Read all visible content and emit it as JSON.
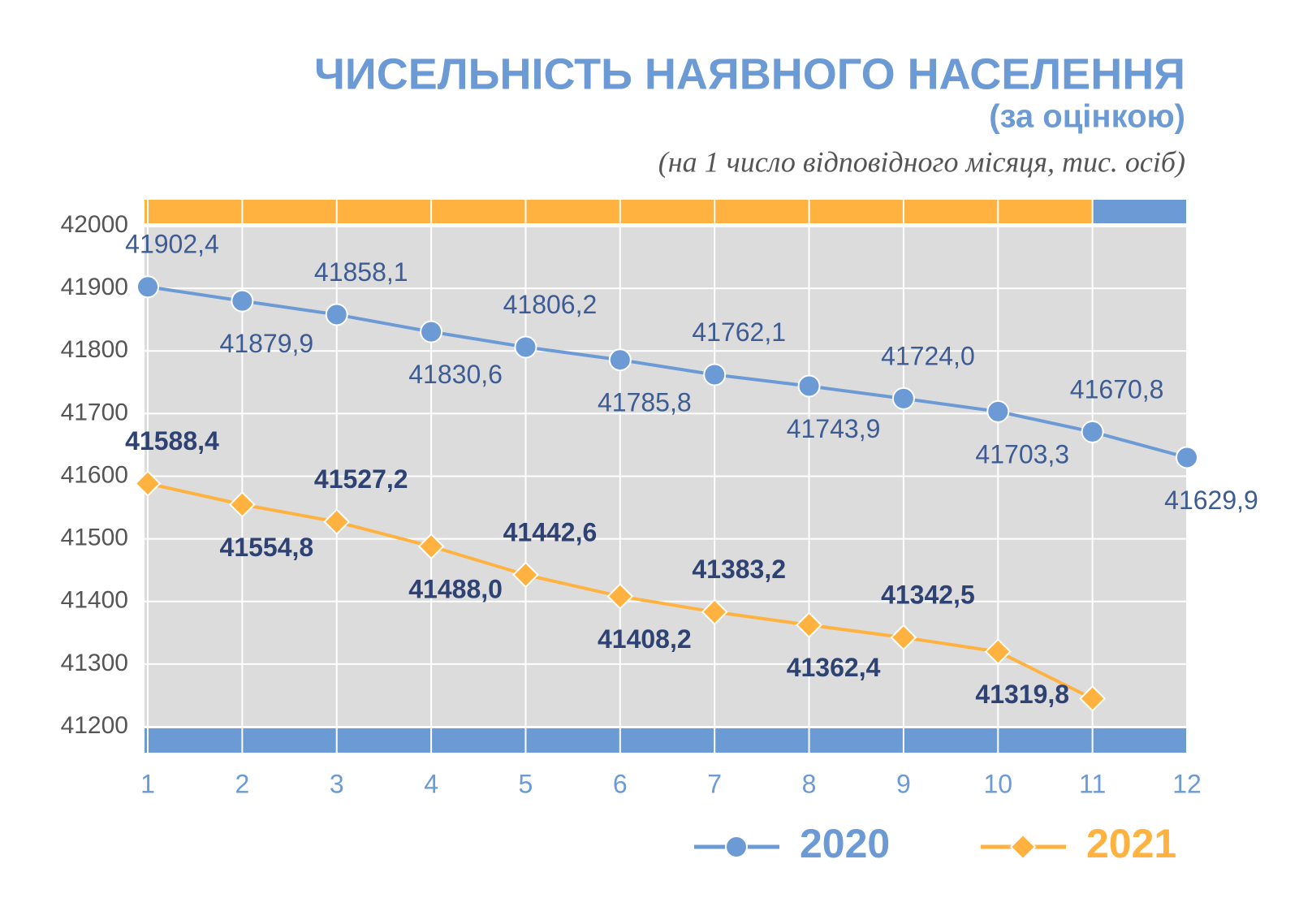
{
  "chart_data": {
    "type": "line",
    "title": "ЧИСЕЛЬНІСТЬ НАЯВНОГО НАСЕЛЕННЯ",
    "subtitle": "(за оцінкою)",
    "note": "(на 1 число відповідного місяця, тис. осіб)",
    "categories": [
      "1",
      "2",
      "3",
      "4",
      "5",
      "6",
      "7",
      "8",
      "9",
      "10",
      "11",
      "12"
    ],
    "ylim": [
      41200,
      42000
    ],
    "yticks": [
      41200,
      41300,
      41400,
      41500,
      41600,
      41700,
      41800,
      41900,
      42000
    ],
    "grid": true,
    "legend": "bottom-right",
    "series": [
      {
        "name": "2020",
        "color": "#6b9ad4",
        "marker": "circle",
        "values": [
          41902.4,
          41879.9,
          41858.1,
          41830.6,
          41806.2,
          41785.8,
          41762.1,
          41743.9,
          41724.0,
          41703.3,
          41670.8,
          41629.9
        ],
        "value_labels": [
          "41902,4",
          "41879,9",
          "41858,1",
          "41830,6",
          "41806,2",
          "41785,8",
          "41762,1",
          "41743,9",
          "41724,0",
          "41703,3",
          "41670,8",
          "41629,9"
        ]
      },
      {
        "name": "2021",
        "color": "#ffb23f",
        "marker": "diamond",
        "values": [
          41588.4,
          41554.8,
          41527.2,
          41488.0,
          41442.6,
          41408.2,
          41383.2,
          41362.4,
          41342.5,
          41319.8,
          41245,
          null
        ],
        "value_labels": [
          "41588,4",
          "41554,8",
          "41527,2",
          "41488,0",
          "41442,6",
          "41408,2",
          "41383,2",
          "41362,4",
          "41342,5",
          "41319,8",
          null,
          null
        ]
      }
    ]
  }
}
